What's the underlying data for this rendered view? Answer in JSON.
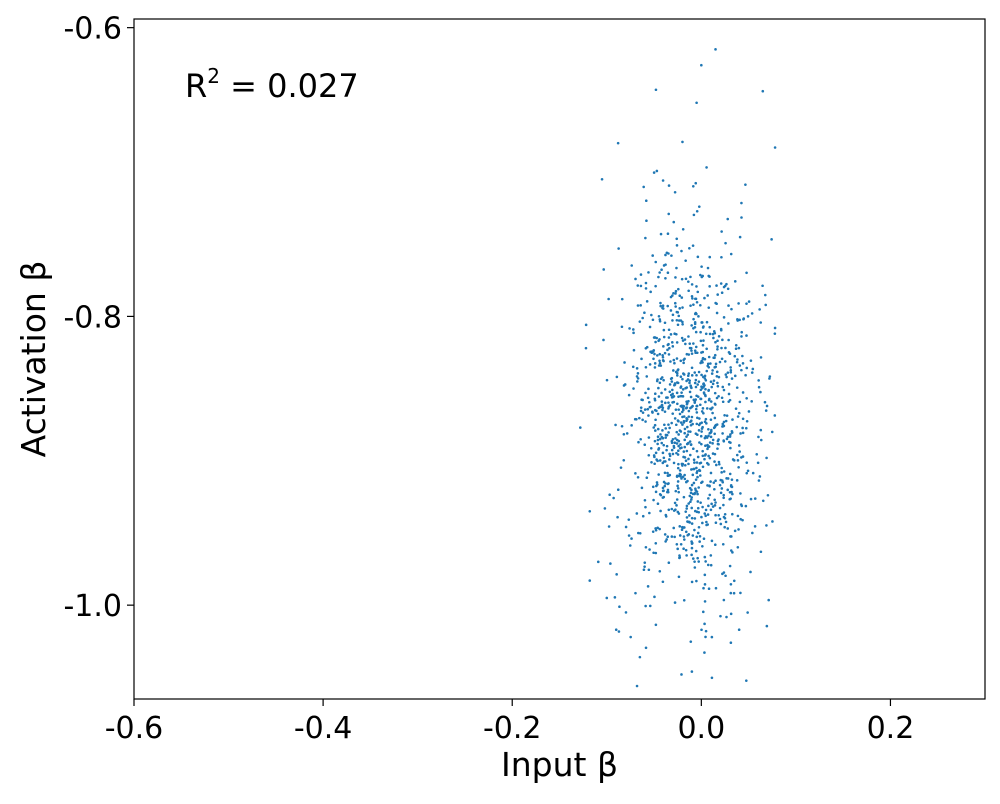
{
  "chart_data": {
    "type": "scatter",
    "title": "",
    "xlabel": "Input β",
    "ylabel": "Activation β",
    "xlim": [
      -0.6,
      0.3
    ],
    "ylim": [
      -1.065,
      -0.594
    ],
    "xticks": [
      -0.6,
      -0.4,
      -0.2,
      0.0,
      0.2
    ],
    "xtick_labels": [
      "-0.6",
      "-0.4",
      "-0.2",
      "0.0",
      "0.2"
    ],
    "yticks": [
      -0.6,
      -0.8,
      -1.0
    ],
    "ytick_labels": [
      "-0.6",
      "-0.8",
      "-1.0"
    ],
    "grid": false,
    "legend": "none",
    "annotation": {
      "prefix": "R",
      "superscript": "2",
      "text": " = 0.027"
    },
    "series": [
      {
        "color": "#1f77b4",
        "n_points": 1200,
        "x_mean": -0.012,
        "x_std": 0.035,
        "y_mean": -0.872,
        "y_std": 0.062,
        "x_range": [
          -0.128,
          0.078
        ],
        "y_range": [
          -1.055,
          -0.615
        ],
        "points": [
          [
            0.015,
            -0.615
          ],
          [
            0.0,
            -0.626
          ],
          [
            -0.048,
            -0.643
          ],
          [
            0.065,
            -0.644
          ],
          [
            -0.005,
            -0.652
          ],
          [
            -0.088,
            -0.68
          ],
          [
            -0.105,
            -0.705
          ],
          [
            0.078,
            -0.683
          ],
          [
            0.078,
            -0.808
          ],
          [
            -0.122,
            -0.822
          ],
          [
            -0.128,
            -0.877
          ],
          [
            0.072,
            -0.843
          ],
          [
            0.075,
            -0.88
          ],
          [
            -0.118,
            -0.935
          ],
          [
            0.069,
            -0.898
          ],
          [
            -0.109,
            -0.97
          ],
          [
            -0.118,
            -0.983
          ],
          [
            0.063,
            -0.963
          ],
          [
            -0.09,
            -1.017
          ],
          [
            0.04,
            -1.017
          ],
          [
            -0.065,
            -1.036
          ],
          [
            -0.068,
            -1.056
          ],
          [
            -0.021,
            -1.048
          ],
          [
            -0.01,
            -1.046
          ],
          [
            0.005,
            -1.018
          ],
          [
            -0.1,
            -0.995
          ],
          [
            0.052,
            -0.977
          ],
          [
            -0.102,
            -0.933
          ]
        ]
      }
    ]
  }
}
